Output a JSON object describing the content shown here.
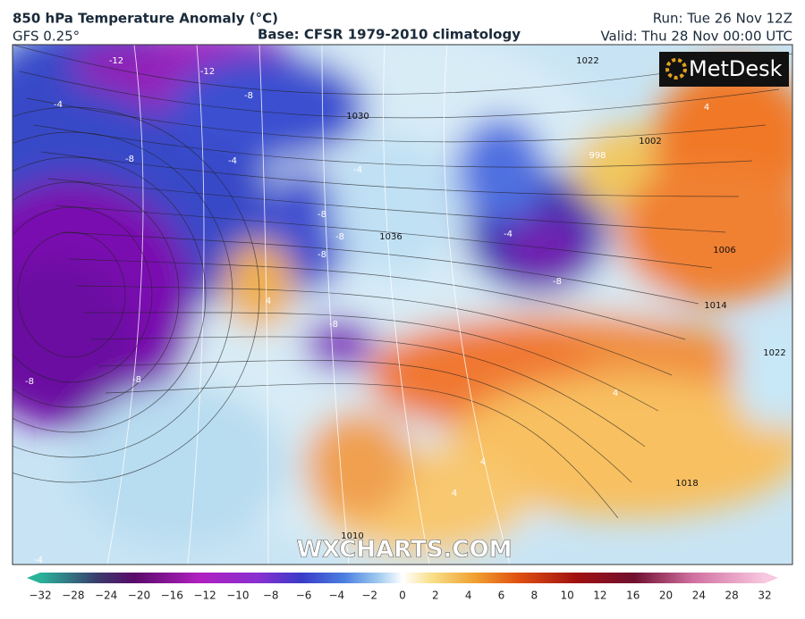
{
  "header": {
    "title": "850 hPa Temperature Anomaly (°C)",
    "model": "GFS 0.25°",
    "base": "Base: CFSR 1979-2010 climatology",
    "run": "Run: Tue 26 Nov 12Z",
    "valid": "Valid: Thu 28 Nov 00:00 UTC"
  },
  "logo": "MetDesk",
  "watermark": "WXCHARTS.COM",
  "contour_labels": [
    "-12",
    "-12",
    "-8",
    "-4",
    "-8",
    "-4",
    "-8",
    "-8",
    "-8",
    "-4",
    "4",
    "-8",
    "1030",
    "1022",
    "1002",
    "998",
    "1006",
    "1014",
    "1022",
    "1018",
    "1036",
    "1010",
    "-8",
    "-4",
    "4",
    "4",
    "4",
    "4",
    "-8",
    "-8",
    "-4"
  ],
  "colorbar": {
    "labels": [
      "−32",
      "−28",
      "−24",
      "−20",
      "−16",
      "−12",
      "−10",
      "−8",
      "−6",
      "−4",
      "−2",
      "0",
      "2",
      "4",
      "6",
      "8",
      "10",
      "12",
      "16",
      "20",
      "24",
      "28",
      "32"
    ]
  }
}
